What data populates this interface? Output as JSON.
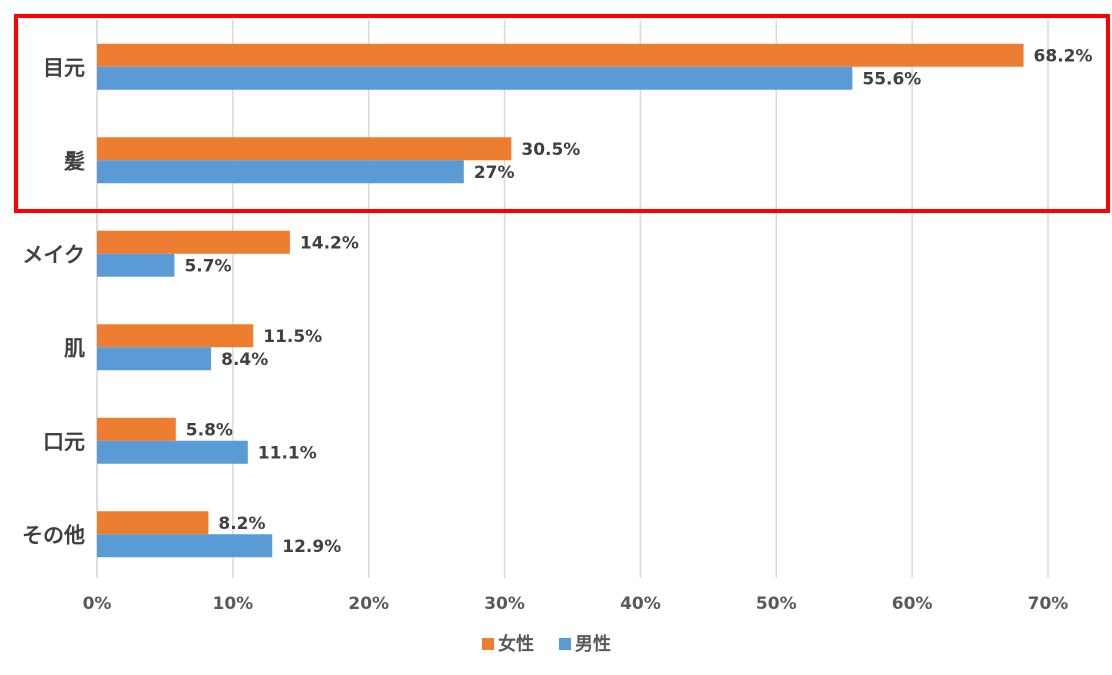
{
  "chart_data": {
    "type": "bar",
    "orientation": "horizontal",
    "title": "",
    "xlabel": "",
    "ylabel": "",
    "categories": [
      "目元",
      "髪",
      "メイク",
      "肌",
      "口元",
      "その他"
    ],
    "series": [
      {
        "name": "女性",
        "color": "#ED7D31",
        "values": [
          68.2,
          30.5,
          14.2,
          11.5,
          5.8,
          8.2
        ],
        "labels": [
          "68.2%",
          "30.5%",
          "14.2%",
          "11.5%",
          "5.8%",
          "8.2%"
        ]
      },
      {
        "name": "男性",
        "color": "#5B9BD5",
        "values": [
          55.6,
          27,
          5.7,
          8.4,
          11.1,
          12.9
        ],
        "labels": [
          "55.6%",
          "27%",
          "5.7%",
          "8.4%",
          "11.1%",
          "12.9%"
        ]
      }
    ],
    "xlim": [
      0,
      70
    ],
    "xticks": [
      0,
      10,
      20,
      30,
      40,
      50,
      60,
      70
    ],
    "xtick_labels": [
      "0%",
      "10%",
      "20%",
      "30%",
      "40%",
      "50%",
      "60%",
      "70%"
    ],
    "grid": true,
    "legend_position": "bottom",
    "highlight": {
      "categories": [
        "目元",
        "髪"
      ],
      "color": "#FF0000"
    }
  }
}
